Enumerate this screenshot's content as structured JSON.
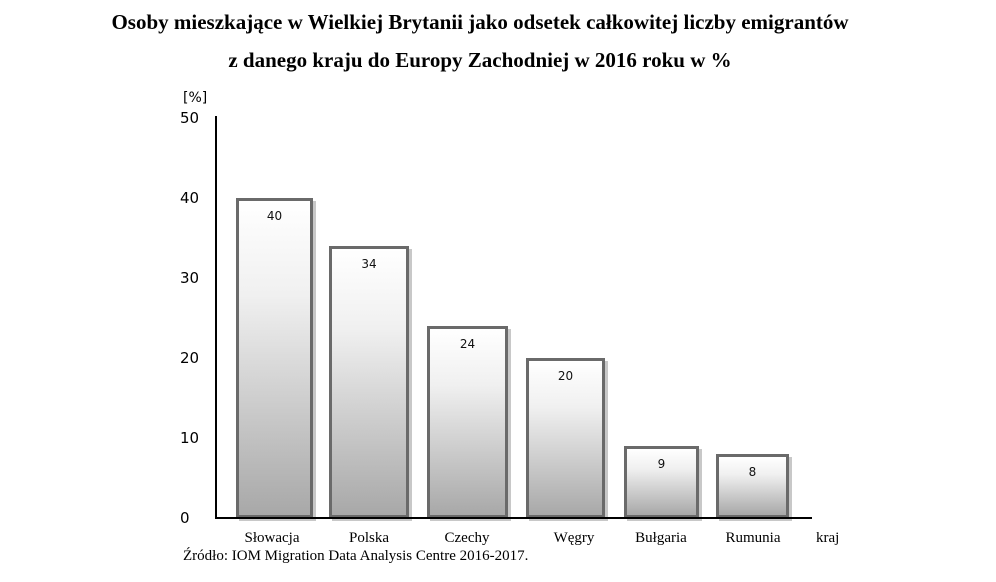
{
  "chart_data": {
    "type": "bar",
    "title": "Osoby mieszkające w Wielkiej Brytanii jako odsetek całkowitej liczby emigrantów z danego kraju do Europy Zachodniej w 2016 roku w %",
    "title_lines": [
      "Osoby mieszkające w Wielkiej Brytanii jako odsetek całkowitej liczby emigrantów",
      "z danego kraju do Europy Zachodniej w 2016 roku w %"
    ],
    "categories": [
      "Słowacja",
      "Polska",
      "Czechy",
      "Węgry",
      "Bułgaria",
      "Rumunia"
    ],
    "values": [
      40,
      34,
      24,
      20,
      9,
      8
    ],
    "value_labels": [
      "40",
      "34",
      "24",
      "20",
      "9",
      "8"
    ],
    "xlabel": "kraj",
    "ylabel": "[%]",
    "ylim": [
      0,
      50
    ],
    "yticks": [
      "50",
      "40",
      "30",
      "20",
      "10",
      "0"
    ],
    "grid": false,
    "legend": null,
    "source": "Źródło: IOM Migration Data Analysis Centre 2016-2017."
  },
  "colors": {
    "bar_border": "#6a6a6a",
    "bar_gradient_top": "#ffffff",
    "bar_gradient_bottom": "#a8a8a8",
    "bar_shadow": "#c8c8c8",
    "axis": "#000000"
  }
}
